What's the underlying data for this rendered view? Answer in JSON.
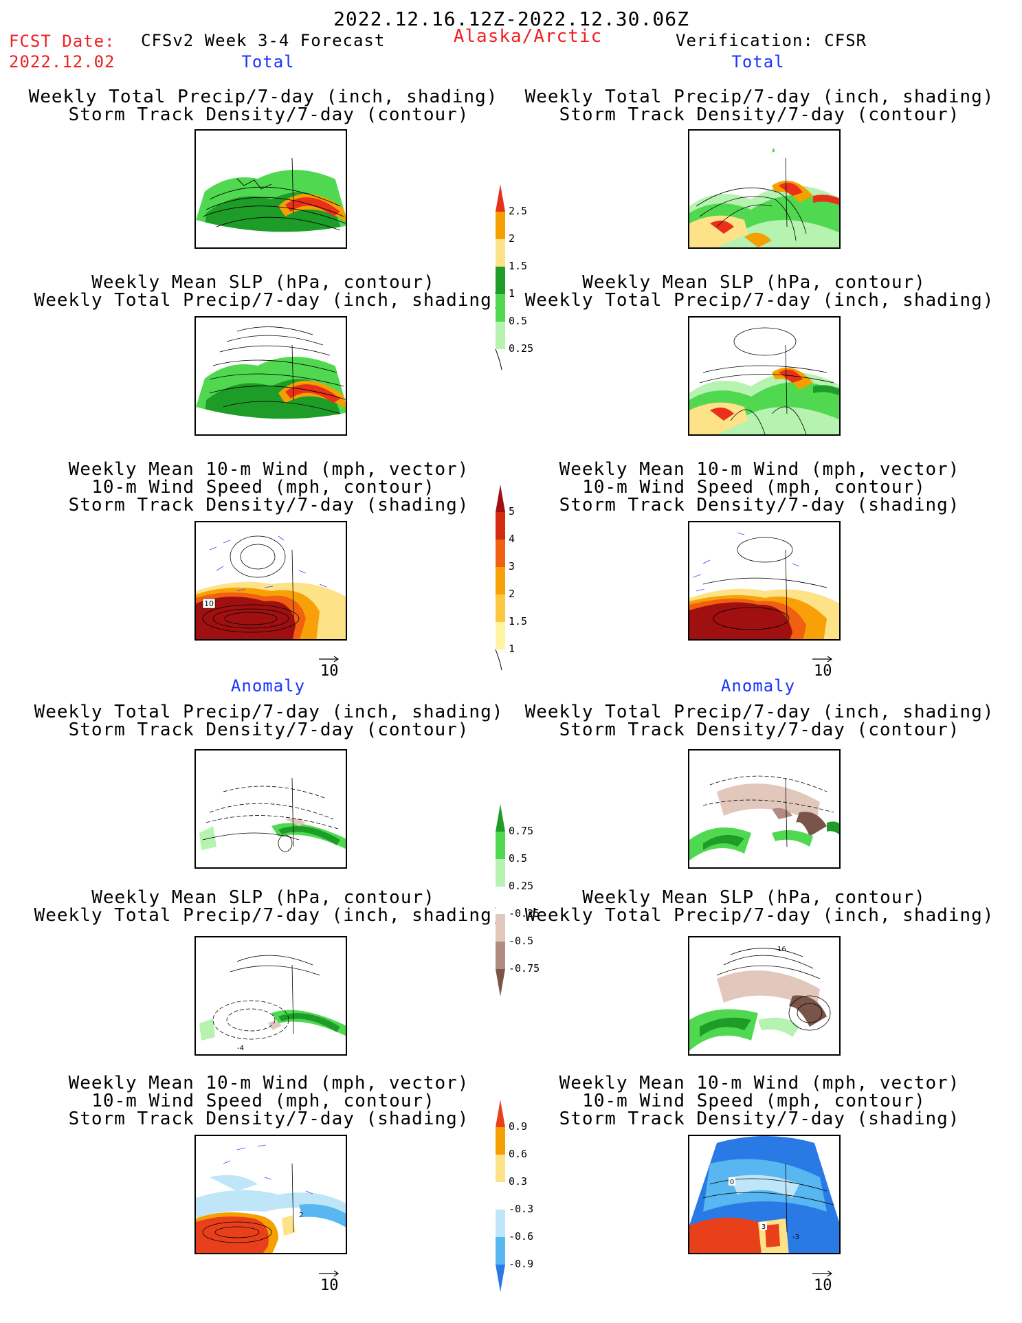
{
  "header": {
    "date_range": "2022.12.16.12Z-2022.12.30.06Z",
    "fcst_label": "FCST Date:",
    "fcst_date": "2022.12.02",
    "model": "CFSv2 Week 3-4 Forecast",
    "region": "Alaska/Arctic",
    "verification": "Verification: CFSR"
  },
  "sections": {
    "total_left": "Total",
    "total_right": "Total",
    "anom_left": "Anomaly",
    "anom_right": "Anomaly"
  },
  "titles": {
    "precip_storm": [
      "Weekly Total Precip/7-day (inch, shading)",
      "Storm Track Density/7-day (contour)"
    ],
    "slp_precip": [
      "Weekly Mean SLP (hPa, contour)",
      "Weekly Total Precip/7-day (inch, shading)"
    ],
    "wind_storm": [
      "Weekly Mean 10-m Wind (mph, vector)",
      "10-m Wind Speed (mph, contour)",
      "Storm Track Density/7-day (shading)"
    ]
  },
  "vector_ref": "10",
  "colorbars": {
    "precip_total": {
      "labels": [
        "2.5",
        "2",
        "1.5",
        "1",
        "0.5",
        "0.25"
      ],
      "colors": [
        "#e8301a",
        "#f5a000",
        "#fde287",
        "#1e9c28",
        "#50d850",
        "#b6f2b0"
      ]
    },
    "storm_total": {
      "labels": [
        "5",
        "4",
        "3",
        "2",
        "1.5",
        "1"
      ],
      "colors": [
        "#a01010",
        "#d42b10",
        "#f06010",
        "#f8a008",
        "#fcc840",
        "#fff3a0"
      ]
    },
    "precip_anom": {
      "labels": [
        "0.75",
        "0.5",
        "0.25",
        "-0.25",
        "-0.5",
        "-0.75"
      ],
      "colors": [
        "#1e9c28",
        "#50d850",
        "#b6f2b0",
        "#ffffff",
        "#e2c8bc",
        "#b08c80",
        "#7a5448"
      ]
    },
    "storm_anom": {
      "labels": [
        "0.9",
        "0.6",
        "0.3",
        "-0.3",
        "-0.6",
        "-0.9"
      ],
      "colors": [
        "#e8401a",
        "#f5a000",
        "#fde287",
        "#ffffff",
        "#bfe6f8",
        "#58b6f0",
        "#2a7ae6"
      ]
    },
    "contour_labels": [
      "10",
      "16",
      "-4",
      "2",
      "0",
      "3",
      "-3"
    ]
  }
}
